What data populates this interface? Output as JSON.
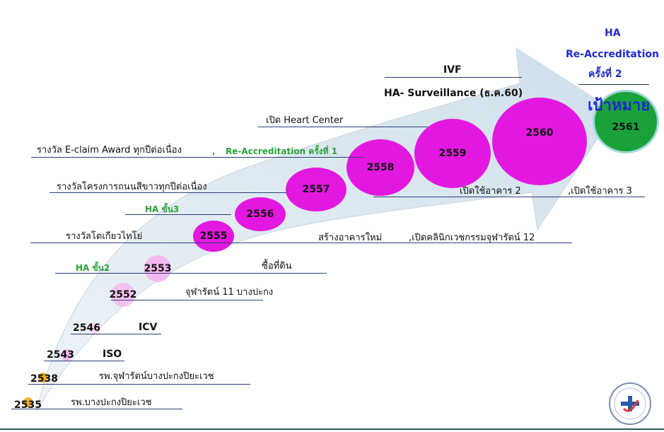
{
  "target": {
    "ha": "HA",
    "reacc": "Re-Accreditation",
    "round": "ครั้งที่ 2",
    "goal": "เป้าหมาย",
    "year": "2561"
  },
  "years": {
    "y2535": "2535",
    "y2538": "2538",
    "y2543": "2543",
    "y2546": "2546",
    "y2552": "2552",
    "y2553": "2553",
    "y2555": "2555",
    "y2556": "2556",
    "y2557": "2557",
    "y2558": "2558",
    "y2559": "2559",
    "y2560": "2560"
  },
  "labels": {
    "ivf": "IVF",
    "ha_surv": "HA- Surveillance (ธ.ค.60)",
    "heart": "เปิด Heart Center",
    "eclaim": "รางวัล E-claim Award ทุกปีต่อเนื่อง",
    "comma": ",",
    "reacc1": "Re-Accreditation ครั้งที่ 1",
    "road": "รางวัลโครงการถนนสีขาวทุกปีต่อเนื่อง",
    "ha3": "HA ขั้น3",
    "bldg2": "เปิดใช้อาคาร 2",
    "bldg3": ",เปิดใช้อาคาร 3",
    "rice": "รางวัลโตเกียวไทโย่",
    "newbldg": "สร้างอาคารใหม่",
    "clinic": ",เปิดคลินิกเวชกรรมจุฬารัตน์ 12",
    "ha2": "HA ขั้น2",
    "land": "ซื้อที่ดิน",
    "cr11": "จุฬารัตน์ 11 บางปะกง",
    "icv": "ICV",
    "iso": "ISO",
    "hosp2": "รพ.จุฬารัตน์บางปะกงปิยะเวช",
    "hosp1": "รพ.บางปะกงปิยะเวช"
  },
  "colors": {
    "arrow": "#d7e4ee",
    "magenta": "#e318e0",
    "pink": "#f2b6ee",
    "green": "#1aa23a",
    "goal_blue": "#1f2ad0",
    "orange": "#f0b030",
    "line": "#2c3e7a"
  },
  "logo": "hospital-accreditation-logo"
}
